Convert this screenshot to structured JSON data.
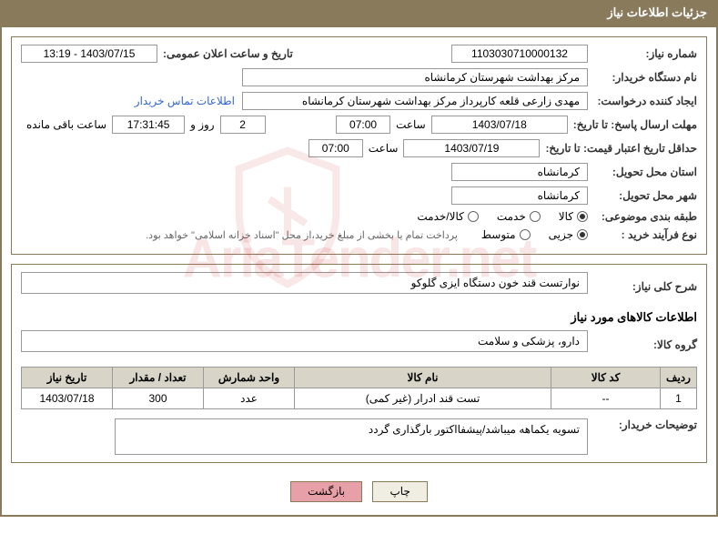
{
  "header": {
    "title": "جزئیات اطلاعات نیاز"
  },
  "fields": {
    "request_number_label": "شماره نیاز:",
    "request_number": "1103030710000132",
    "announce_datetime_label": "تاریخ و ساعت اعلان عمومی:",
    "announce_datetime": "1403/07/15 - 13:19",
    "buyer_org_label": "نام دستگاه خریدار:",
    "buyer_org": "مرکز بهداشت شهرستان کرمانشاه",
    "creator_label": "ایجاد کننده درخواست:",
    "creator": "مهدی  زارعی قلعه کارپرداز مرکز بهداشت شهرستان کرمانشاه",
    "buyer_contact_link": "اطلاعات تماس خریدار",
    "response_deadline_label": "مهلت ارسال پاسخ: تا تاریخ:",
    "response_date": "1403/07/18",
    "time_label": "ساعت",
    "response_time": "07:00",
    "days_count": "2",
    "days_and": "روز و",
    "countdown_time": "17:31:45",
    "remaining_label": "ساعت باقی مانده",
    "validity_label": "حداقل تاریخ اعتبار قیمت: تا تاریخ:",
    "validity_date": "1403/07/19",
    "validity_time": "07:00",
    "delivery_province_label": "استان محل تحویل:",
    "delivery_province": "کرمانشاه",
    "delivery_city_label": "شهر محل تحویل:",
    "delivery_city": "کرمانشاه",
    "category_label": "طبقه بندی موضوعی:",
    "process_type_label": "نوع فرآیند خرید :",
    "payment_note": "پرداخت تمام یا بخشی از مبلغ خرید،از محل \"اسناد خزانه اسلامی\" خواهد بود.",
    "summary_label": "شرح کلی نیاز:",
    "summary": "نوارتست قند خون دستگاه ایزی گلوکو",
    "goods_section_title": "اطلاعات کالاهای مورد نیاز",
    "goods_group_label": "گروه کالا:",
    "goods_group": "دارو، پزشکی و سلامت",
    "buyer_notes_label": "توضیحات خریدار:",
    "buyer_notes": "تسویه یکماهه میباشد/پیشفااکتور بارگذاری گردد"
  },
  "category_options": [
    {
      "label": "کالا",
      "checked": true
    },
    {
      "label": "خدمت",
      "checked": false
    },
    {
      "label": "کالا/خدمت",
      "checked": false
    }
  ],
  "process_options": [
    {
      "label": "جزیی",
      "checked": true
    },
    {
      "label": "متوسط",
      "checked": false
    }
  ],
  "table": {
    "headers": [
      "ردیف",
      "کد کالا",
      "نام کالا",
      "واحد شمارش",
      "تعداد / مقدار",
      "تاریخ نیاز"
    ],
    "rows": [
      [
        "1",
        "--",
        "تست قند ادرار (غیر کمی)",
        "عدد",
        "300",
        "1403/07/18"
      ]
    ]
  },
  "buttons": {
    "print": "چاپ",
    "back": "بازگشت"
  },
  "colors": {
    "header_bg": "#8a7a5c",
    "border": "#8a7a5c",
    "th_bg": "#d8d4c8",
    "link": "#3366cc",
    "btn_back_bg": "#e8a0a8"
  },
  "watermark": "AriaTender.net"
}
